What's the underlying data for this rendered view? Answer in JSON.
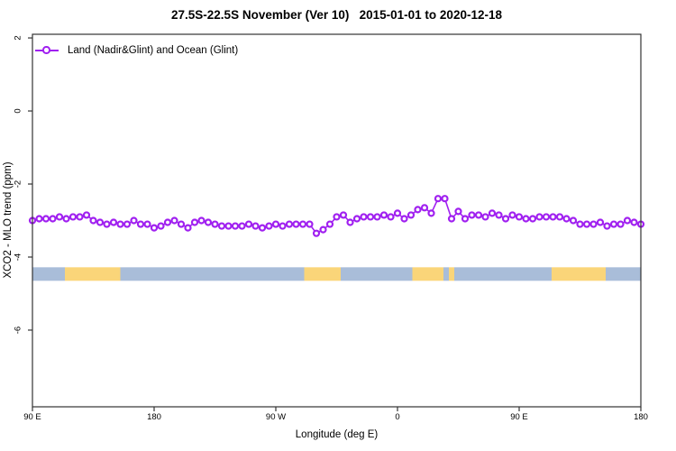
{
  "chart_data": {
    "type": "line",
    "title": "27.5S-22.5S November (Ver 10)   2015-01-01 to 2020-12-18",
    "xlabel": "Longitude (deg E)",
    "ylabel": "XCO2 - MLO trend (ppm)",
    "xlim": [
      90,
      540
    ],
    "ylim": [
      -8.1,
      2.1
    ],
    "grid": false,
    "legend_position": "top-left-inside",
    "x_ticks": [
      {
        "value": 90,
        "label": "90 E"
      },
      {
        "value": 180,
        "label": "180"
      },
      {
        "value": 270,
        "label": "90 W"
      },
      {
        "value": 360,
        "label": "0"
      },
      {
        "value": 450,
        "label": "90 E"
      },
      {
        "value": 540,
        "label": "180"
      }
    ],
    "y_ticks": [
      {
        "value": 2,
        "label": "2"
      },
      {
        "value": 0,
        "label": "0"
      },
      {
        "value": -2,
        "label": "-2"
      },
      {
        "value": -4,
        "label": "-4"
      },
      {
        "value": -6,
        "label": "-6"
      }
    ],
    "series": [
      {
        "name": "Land (Nadir&Glint) and Ocean (Glint)",
        "color": "#A020F0",
        "marker": "open-circle",
        "x": [
          90,
          95,
          100,
          105,
          110,
          115,
          120,
          125,
          130,
          135,
          140,
          145,
          150,
          155,
          160,
          165,
          170,
          175,
          180,
          185,
          190,
          195,
          200,
          205,
          210,
          215,
          220,
          225,
          230,
          235,
          240,
          245,
          250,
          255,
          260,
          265,
          270,
          275,
          280,
          285,
          290,
          295,
          300,
          305,
          310,
          315,
          320,
          325,
          330,
          335,
          340,
          345,
          350,
          355,
          360,
          365,
          370,
          375,
          380,
          385,
          390,
          395,
          400,
          405,
          410,
          415,
          420,
          425,
          430,
          435,
          440,
          445,
          450,
          455,
          460,
          465,
          470,
          475,
          480,
          485,
          490,
          495,
          500,
          505,
          510,
          515,
          520,
          525,
          530,
          535,
          540
        ],
        "y": [
          -3.0,
          -2.95,
          -2.95,
          -2.95,
          -2.9,
          -2.95,
          -2.9,
          -2.9,
          -2.85,
          -3.0,
          -3.05,
          -3.1,
          -3.05,
          -3.1,
          -3.1,
          -3.0,
          -3.1,
          -3.1,
          -3.2,
          -3.15,
          -3.05,
          -3.0,
          -3.1,
          -3.2,
          -3.05,
          -3.0,
          -3.05,
          -3.1,
          -3.15,
          -3.15,
          -3.15,
          -3.15,
          -3.1,
          -3.15,
          -3.2,
          -3.15,
          -3.1,
          -3.15,
          -3.1,
          -3.1,
          -3.1,
          -3.1,
          -3.35,
          -3.25,
          -3.1,
          -2.9,
          -2.85,
          -3.05,
          -2.95,
          -2.9,
          -2.9,
          -2.9,
          -2.85,
          -2.9,
          -2.8,
          -2.95,
          -2.85,
          -2.7,
          -2.65,
          -2.8,
          -2.4,
          -2.4,
          -2.95,
          -2.75,
          -2.95,
          -2.85,
          -2.85,
          -2.9,
          -2.8,
          -2.85,
          -2.95,
          -2.85,
          -2.9,
          -2.95,
          -2.95,
          -2.9,
          -2.9,
          -2.9,
          -2.9,
          -2.95,
          -3.0,
          -3.1,
          -3.1,
          -3.1,
          -3.05,
          -3.15,
          -3.1,
          -3.1,
          -3.0,
          -3.05,
          -3.1
        ]
      }
    ],
    "surface_band": {
      "description": "land-ocean indicator band",
      "y_top": -4.28,
      "y_bottom": -4.65,
      "colors": {
        "ocean": "#A9BDD9",
        "land": "#FAD579"
      },
      "segments": [
        [
          90,
          114,
          "ocean"
        ],
        [
          114,
          155,
          "land"
        ],
        [
          155,
          291,
          "ocean"
        ],
        [
          291,
          318,
          "land"
        ],
        [
          318,
          371,
          "ocean"
        ],
        [
          371,
          394,
          "land"
        ],
        [
          394,
          398,
          "ocean"
        ],
        [
          398,
          402,
          "land"
        ],
        [
          402,
          474,
          "ocean"
        ],
        [
          474,
          514,
          "land"
        ],
        [
          514,
          540,
          "ocean"
        ]
      ]
    },
    "axis_color": "#333333",
    "text_color": "#000000"
  }
}
